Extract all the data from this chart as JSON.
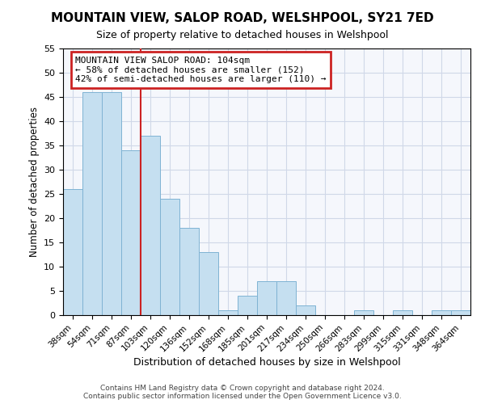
{
  "title": "MOUNTAIN VIEW, SALOP ROAD, WELSHPOOL, SY21 7ED",
  "subtitle": "Size of property relative to detached houses in Welshpool",
  "xlabel": "Distribution of detached houses by size in Welshpool",
  "ylabel": "Number of detached properties",
  "bar_labels": [
    "38sqm",
    "54sqm",
    "71sqm",
    "87sqm",
    "103sqm",
    "120sqm",
    "136sqm",
    "152sqm",
    "168sqm",
    "185sqm",
    "201sqm",
    "217sqm",
    "234sqm",
    "250sqm",
    "266sqm",
    "283sqm",
    "299sqm",
    "315sqm",
    "331sqm",
    "348sqm",
    "364sqm"
  ],
  "bar_values": [
    26,
    46,
    46,
    34,
    37,
    24,
    18,
    13,
    1,
    4,
    7,
    7,
    2,
    0,
    0,
    1,
    0,
    1,
    0,
    1,
    1
  ],
  "vline_position": 3.5,
  "bar_color": "#c5dff0",
  "bar_edge_color": "#7fb3d3",
  "ylim": [
    0,
    55
  ],
  "yticks": [
    0,
    5,
    10,
    15,
    20,
    25,
    30,
    35,
    40,
    45,
    50,
    55
  ],
  "annotation_lines": [
    "MOUNTAIN VIEW SALOP ROAD: 104sqm",
    "← 58% of detached houses are smaller (152)",
    "42% of semi-detached houses are larger (110) →"
  ],
  "footer_lines": [
    "Contains HM Land Registry data © Crown copyright and database right 2024.",
    "Contains public sector information licensed under the Open Government Licence v3.0."
  ]
}
